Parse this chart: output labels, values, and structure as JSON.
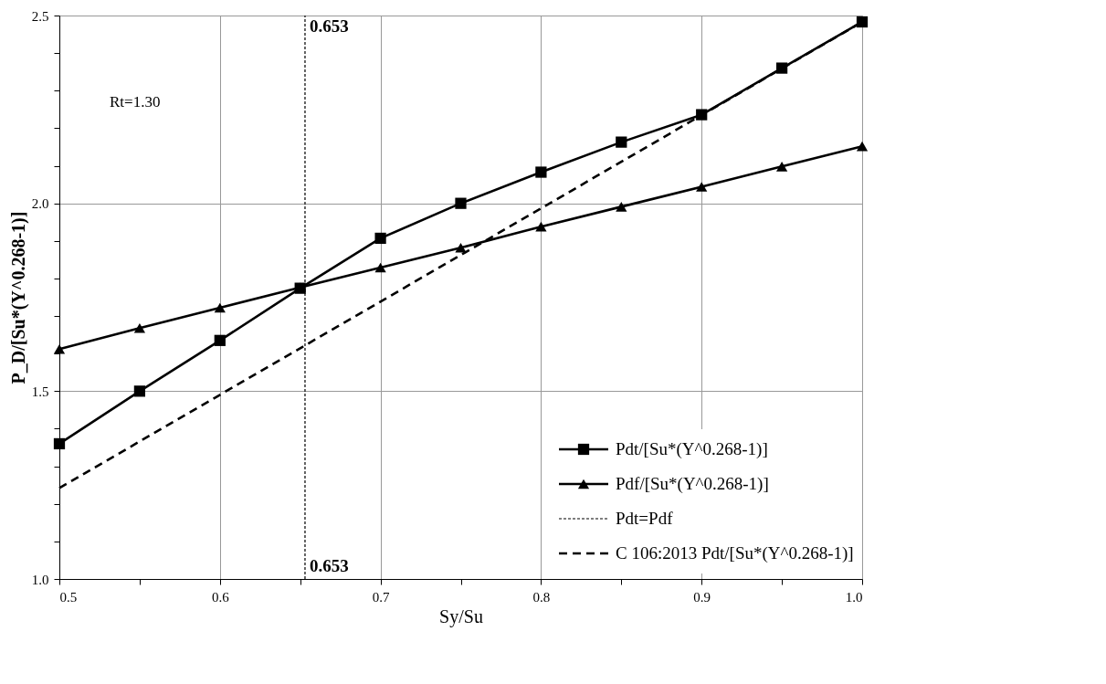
{
  "chart_data": {
    "type": "line",
    "xlabel": "Sy/Su",
    "ylabel": "P_D/[Su*(Y^0.268-1)]",
    "x": [
      0.5,
      0.55,
      0.6,
      0.65,
      0.7,
      0.75,
      0.8,
      0.85,
      0.9,
      0.95,
      1.0
    ],
    "series": [
      {
        "name": "Pdt/[Su*(Y^0.268-1)]",
        "color": "#000000",
        "marker": "square",
        "line_style": "solid",
        "values": [
          1.36,
          1.5,
          1.635,
          1.774,
          1.907,
          2.0,
          2.083,
          2.163,
          2.236,
          2.36,
          2.483
        ]
      },
      {
        "name": "Pdf/[Su*(Y^0.268-1)]",
        "color": "#000000",
        "marker": "triangle",
        "line_style": "solid",
        "values": [
          1.612,
          1.668,
          1.722,
          1.776,
          1.829,
          1.882,
          1.938,
          1.991,
          2.044,
          2.098,
          2.152
        ]
      },
      {
        "name": "Pdt=Pdf",
        "color": "#000000",
        "marker": "none",
        "line_style": "dotted",
        "x": [
          0.653,
          0.653
        ],
        "values": [
          1.0,
          2.5
        ]
      },
      {
        "name": "C 106:2013  Pdt/[Su*(Y^0.268-1)]",
        "color": "#000000",
        "marker": "none",
        "line_style": "dashed",
        "x": [
          0.5,
          1.0
        ],
        "values": [
          1.242,
          2.483
        ]
      }
    ],
    "annotations": [
      "Rt=1.30",
      {
        "text": "0.653",
        "x": 0.653,
        "y": 2.5
      },
      {
        "text": "0.653",
        "x": 0.653,
        "y": 1.0
      }
    ],
    "xlim": [
      0.5,
      1.0
    ],
    "xticks": [
      {
        "value": 0.5,
        "label": "0.5"
      },
      {
        "value": 0.55,
        "label": null
      },
      {
        "value": 0.6,
        "label": "0.6"
      },
      {
        "value": 0.65,
        "label": null
      },
      {
        "value": 0.7,
        "label": "0.7"
      },
      {
        "value": 0.75,
        "label": null
      },
      {
        "value": 0.8,
        "label": "0.8"
      },
      {
        "value": 0.85,
        "label": null
      },
      {
        "value": 0.9,
        "label": "0.9"
      },
      {
        "value": 0.95,
        "label": null
      },
      {
        "value": 1.0,
        "label": "1.0"
      }
    ],
    "ylim": [
      1.0,
      2.5
    ],
    "yticks": [
      {
        "value": 1.0,
        "label": "1.0"
      },
      {
        "value": 1.1,
        "label": null
      },
      {
        "value": 1.2,
        "label": null
      },
      {
        "value": 1.3,
        "label": null
      },
      {
        "value": 1.4,
        "label": null
      },
      {
        "value": 1.5,
        "label": "1.5"
      },
      {
        "value": 1.6,
        "label": null
      },
      {
        "value": 1.7,
        "label": null
      },
      {
        "value": 1.8,
        "label": null
      },
      {
        "value": 1.9,
        "label": null
      },
      {
        "value": 2.0,
        "label": "2.0"
      },
      {
        "value": 2.1,
        "label": null
      },
      {
        "value": 2.2,
        "label": null
      },
      {
        "value": 2.3,
        "label": null
      },
      {
        "value": 2.4,
        "label": null
      },
      {
        "value": 2.5,
        "label": "2.5"
      }
    ],
    "grid": true,
    "legend": "bottom right"
  }
}
